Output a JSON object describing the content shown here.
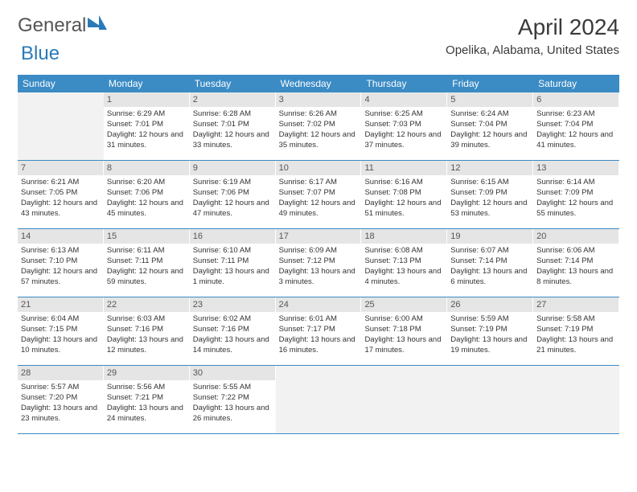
{
  "branding": {
    "logo_text_1": "General",
    "logo_text_2": "Blue"
  },
  "header": {
    "title": "April 2024",
    "location": "Opelika, Alabama, United States"
  },
  "styling": {
    "header_bg": "#3b8bc4",
    "header_text": "#ffffff",
    "daynum_bg": "#e5e5e5",
    "empty_bg": "#f2f2f2",
    "border_color": "#3b8bc4",
    "body_fontsize": 9.5,
    "title_fontsize": 28,
    "location_fontsize": 15,
    "weekday_fontsize": 12
  },
  "weekdays": [
    "Sunday",
    "Monday",
    "Tuesday",
    "Wednesday",
    "Thursday",
    "Friday",
    "Saturday"
  ],
  "weeks": [
    [
      {
        "empty": true
      },
      {
        "day": "1",
        "sunrise": "Sunrise: 6:29 AM",
        "sunset": "Sunset: 7:01 PM",
        "daylight": "Daylight: 12 hours and 31 minutes."
      },
      {
        "day": "2",
        "sunrise": "Sunrise: 6:28 AM",
        "sunset": "Sunset: 7:01 PM",
        "daylight": "Daylight: 12 hours and 33 minutes."
      },
      {
        "day": "3",
        "sunrise": "Sunrise: 6:26 AM",
        "sunset": "Sunset: 7:02 PM",
        "daylight": "Daylight: 12 hours and 35 minutes."
      },
      {
        "day": "4",
        "sunrise": "Sunrise: 6:25 AM",
        "sunset": "Sunset: 7:03 PM",
        "daylight": "Daylight: 12 hours and 37 minutes."
      },
      {
        "day": "5",
        "sunrise": "Sunrise: 6:24 AM",
        "sunset": "Sunset: 7:04 PM",
        "daylight": "Daylight: 12 hours and 39 minutes."
      },
      {
        "day": "6",
        "sunrise": "Sunrise: 6:23 AM",
        "sunset": "Sunset: 7:04 PM",
        "daylight": "Daylight: 12 hours and 41 minutes."
      }
    ],
    [
      {
        "day": "7",
        "sunrise": "Sunrise: 6:21 AM",
        "sunset": "Sunset: 7:05 PM",
        "daylight": "Daylight: 12 hours and 43 minutes."
      },
      {
        "day": "8",
        "sunrise": "Sunrise: 6:20 AM",
        "sunset": "Sunset: 7:06 PM",
        "daylight": "Daylight: 12 hours and 45 minutes."
      },
      {
        "day": "9",
        "sunrise": "Sunrise: 6:19 AM",
        "sunset": "Sunset: 7:06 PM",
        "daylight": "Daylight: 12 hours and 47 minutes."
      },
      {
        "day": "10",
        "sunrise": "Sunrise: 6:17 AM",
        "sunset": "Sunset: 7:07 PM",
        "daylight": "Daylight: 12 hours and 49 minutes."
      },
      {
        "day": "11",
        "sunrise": "Sunrise: 6:16 AM",
        "sunset": "Sunset: 7:08 PM",
        "daylight": "Daylight: 12 hours and 51 minutes."
      },
      {
        "day": "12",
        "sunrise": "Sunrise: 6:15 AM",
        "sunset": "Sunset: 7:09 PM",
        "daylight": "Daylight: 12 hours and 53 minutes."
      },
      {
        "day": "13",
        "sunrise": "Sunrise: 6:14 AM",
        "sunset": "Sunset: 7:09 PM",
        "daylight": "Daylight: 12 hours and 55 minutes."
      }
    ],
    [
      {
        "day": "14",
        "sunrise": "Sunrise: 6:13 AM",
        "sunset": "Sunset: 7:10 PM",
        "daylight": "Daylight: 12 hours and 57 minutes."
      },
      {
        "day": "15",
        "sunrise": "Sunrise: 6:11 AM",
        "sunset": "Sunset: 7:11 PM",
        "daylight": "Daylight: 12 hours and 59 minutes."
      },
      {
        "day": "16",
        "sunrise": "Sunrise: 6:10 AM",
        "sunset": "Sunset: 7:11 PM",
        "daylight": "Daylight: 13 hours and 1 minute."
      },
      {
        "day": "17",
        "sunrise": "Sunrise: 6:09 AM",
        "sunset": "Sunset: 7:12 PM",
        "daylight": "Daylight: 13 hours and 3 minutes."
      },
      {
        "day": "18",
        "sunrise": "Sunrise: 6:08 AM",
        "sunset": "Sunset: 7:13 PM",
        "daylight": "Daylight: 13 hours and 4 minutes."
      },
      {
        "day": "19",
        "sunrise": "Sunrise: 6:07 AM",
        "sunset": "Sunset: 7:14 PM",
        "daylight": "Daylight: 13 hours and 6 minutes."
      },
      {
        "day": "20",
        "sunrise": "Sunrise: 6:06 AM",
        "sunset": "Sunset: 7:14 PM",
        "daylight": "Daylight: 13 hours and 8 minutes."
      }
    ],
    [
      {
        "day": "21",
        "sunrise": "Sunrise: 6:04 AM",
        "sunset": "Sunset: 7:15 PM",
        "daylight": "Daylight: 13 hours and 10 minutes."
      },
      {
        "day": "22",
        "sunrise": "Sunrise: 6:03 AM",
        "sunset": "Sunset: 7:16 PM",
        "daylight": "Daylight: 13 hours and 12 minutes."
      },
      {
        "day": "23",
        "sunrise": "Sunrise: 6:02 AM",
        "sunset": "Sunset: 7:16 PM",
        "daylight": "Daylight: 13 hours and 14 minutes."
      },
      {
        "day": "24",
        "sunrise": "Sunrise: 6:01 AM",
        "sunset": "Sunset: 7:17 PM",
        "daylight": "Daylight: 13 hours and 16 minutes."
      },
      {
        "day": "25",
        "sunrise": "Sunrise: 6:00 AM",
        "sunset": "Sunset: 7:18 PM",
        "daylight": "Daylight: 13 hours and 17 minutes."
      },
      {
        "day": "26",
        "sunrise": "Sunrise: 5:59 AM",
        "sunset": "Sunset: 7:19 PM",
        "daylight": "Daylight: 13 hours and 19 minutes."
      },
      {
        "day": "27",
        "sunrise": "Sunrise: 5:58 AM",
        "sunset": "Sunset: 7:19 PM",
        "daylight": "Daylight: 13 hours and 21 minutes."
      }
    ],
    [
      {
        "day": "28",
        "sunrise": "Sunrise: 5:57 AM",
        "sunset": "Sunset: 7:20 PM",
        "daylight": "Daylight: 13 hours and 23 minutes."
      },
      {
        "day": "29",
        "sunrise": "Sunrise: 5:56 AM",
        "sunset": "Sunset: 7:21 PM",
        "daylight": "Daylight: 13 hours and 24 minutes."
      },
      {
        "day": "30",
        "sunrise": "Sunrise: 5:55 AM",
        "sunset": "Sunset: 7:22 PM",
        "daylight": "Daylight: 13 hours and 26 minutes."
      },
      {
        "empty": true
      },
      {
        "empty": true
      },
      {
        "empty": true
      },
      {
        "empty": true
      }
    ]
  ]
}
